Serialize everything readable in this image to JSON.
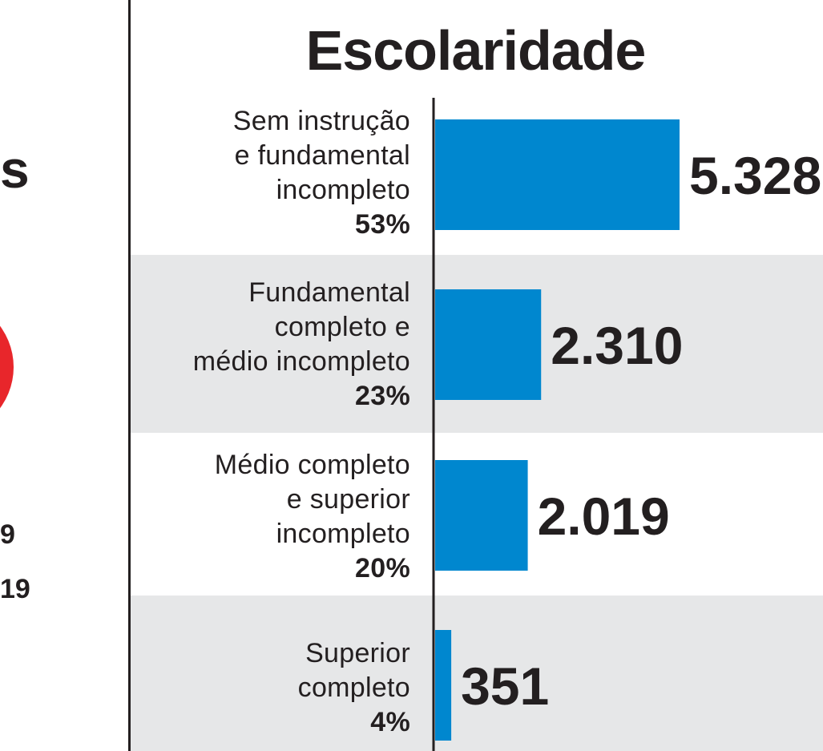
{
  "left_fragment": {
    "title_tail": "s",
    "line1_tail": "9",
    "line2_tail": "19",
    "circle_color": "#e8262b"
  },
  "chart_data": {
    "type": "bar",
    "orientation": "horizontal",
    "title": "Escolaridade",
    "categories": [
      "Sem instrução e fundamental incompleto",
      "Fundamental completo e médio incompleto",
      "Médio completo e superior incompleto",
      "Superior completo"
    ],
    "category_lines": [
      [
        "Sem instrução",
        "e fundamental",
        "incompleto"
      ],
      [
        "Fundamental",
        "completo e",
        "médio incompleto"
      ],
      [
        "Médio completo",
        "e superior",
        "incompleto"
      ],
      [
        "Superior",
        "completo"
      ]
    ],
    "percentages": [
      "53%",
      "23%",
      "20%",
      "4%"
    ],
    "values": [
      5328,
      2310,
      2019,
      351
    ],
    "value_labels": [
      "5.328",
      "2.310",
      "2.019",
      "351"
    ],
    "xlim": [
      0,
      5328
    ],
    "grid": false,
    "legend": "none",
    "bar_color": "#0087cf",
    "band_color": "#e6e7e8"
  }
}
